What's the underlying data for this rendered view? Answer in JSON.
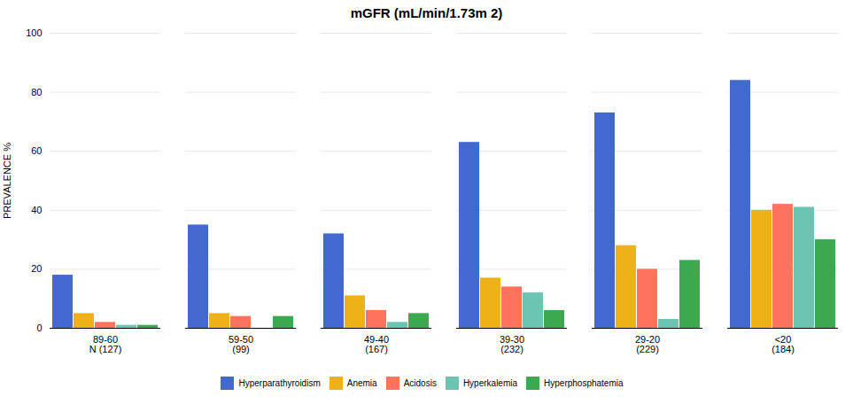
{
  "chart_data": {
    "type": "bar",
    "title": "mGFR (mL/min/1.73m 2)",
    "ylabel": "PREVALENCE %",
    "categories": [
      "89-60\nN (127)",
      "59-50\n(99)",
      "49-40\n(167)",
      "39-30\n(232)",
      "29-20\n(229)",
      "<20\n(184)"
    ],
    "series": [
      {
        "name": "Hyperparathyroidism",
        "values": [
          18,
          35,
          32,
          63,
          73,
          84
        ]
      },
      {
        "name": "Anemia",
        "values": [
          5,
          5,
          11,
          17,
          28,
          40
        ]
      },
      {
        "name": "Acidosis",
        "values": [
          2,
          4,
          6,
          14,
          20,
          42
        ]
      },
      {
        "name": "Hyperkalemia",
        "values": [
          1,
          0,
          2,
          12,
          3,
          41
        ]
      },
      {
        "name": "Hyperphosphatemia",
        "values": [
          1,
          4,
          5,
          6,
          23,
          30
        ]
      }
    ],
    "ylim": [
      0,
      100
    ],
    "yticks": [
      0,
      20,
      40,
      60,
      80,
      100
    ],
    "grid": true,
    "legend": "bottom"
  }
}
